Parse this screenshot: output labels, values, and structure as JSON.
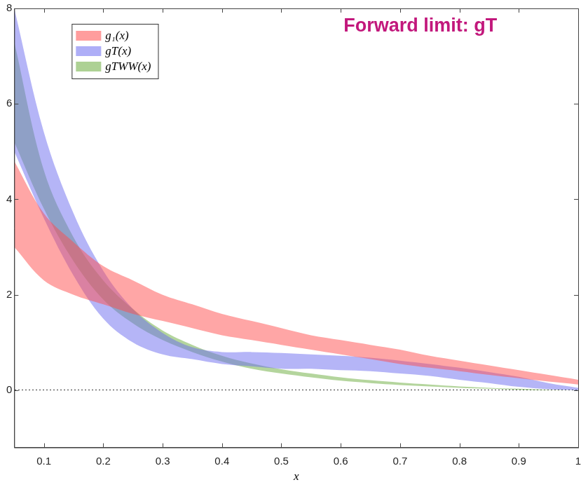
{
  "chart_data": {
    "type": "band",
    "title": "Forward limit: gT",
    "x_label": "x",
    "xlim": [
      0.05,
      1
    ],
    "xticks": [
      0.1,
      0.2,
      0.3,
      0.4,
      0.5,
      0.6,
      0.7,
      0.8,
      0.9,
      1
    ],
    "ylim": [
      -1.2,
      8
    ],
    "yticks": [
      0,
      2,
      4,
      6,
      8
    ],
    "legend": "upper left",
    "x": [
      0.05,
      0.1,
      0.15,
      0.2,
      0.25,
      0.3,
      0.35,
      0.4,
      0.45,
      0.5,
      0.55,
      0.6,
      0.65,
      0.7,
      0.75,
      0.8,
      0.85,
      0.9,
      0.95,
      1
    ],
    "series": [
      {
        "name": "g₁(x)",
        "color": "#ff4d4d",
        "lower": [
          3.0,
          2.3,
          2.0,
          1.8,
          1.6,
          1.45,
          1.3,
          1.15,
          1.05,
          0.95,
          0.85,
          0.75,
          0.65,
          0.55,
          0.47,
          0.4,
          0.32,
          0.25,
          0.18,
          0.12
        ],
        "upper": [
          4.8,
          3.7,
          3.1,
          2.6,
          2.3,
          2.0,
          1.8,
          1.6,
          1.45,
          1.3,
          1.15,
          1.05,
          0.95,
          0.85,
          0.72,
          0.62,
          0.52,
          0.42,
          0.32,
          0.22
        ]
      },
      {
        "name": "gT(x)",
        "color": "#6b6bf0",
        "lower": [
          5.0,
          3.6,
          2.4,
          1.5,
          1.0,
          0.75,
          0.65,
          0.55,
          0.5,
          0.45,
          0.45,
          0.42,
          0.4,
          0.35,
          0.3,
          0.22,
          0.15,
          0.07,
          0.02,
          0
        ],
        "upper": [
          8.0,
          5.4,
          3.7,
          2.5,
          1.7,
          1.2,
          0.9,
          0.8,
          0.8,
          0.78,
          0.75,
          0.72,
          0.68,
          0.62,
          0.55,
          0.47,
          0.38,
          0.28,
          0.15,
          0.05
        ]
      },
      {
        "name": "gTWW(x)",
        "color": "#6aab3c",
        "lower": [
          5.2,
          3.8,
          2.7,
          1.9,
          1.4,
          1.05,
          0.8,
          0.6,
          0.45,
          0.35,
          0.27,
          0.2,
          0.15,
          0.11,
          0.08,
          0.05,
          0.03,
          0.01,
          0,
          0
        ],
        "upper": [
          7.3,
          4.6,
          3.2,
          2.3,
          1.7,
          1.25,
          0.95,
          0.72,
          0.56,
          0.44,
          0.35,
          0.27,
          0.21,
          0.16,
          0.12,
          0.08,
          0.05,
          0.03,
          0.01,
          0.005
        ]
      }
    ]
  }
}
